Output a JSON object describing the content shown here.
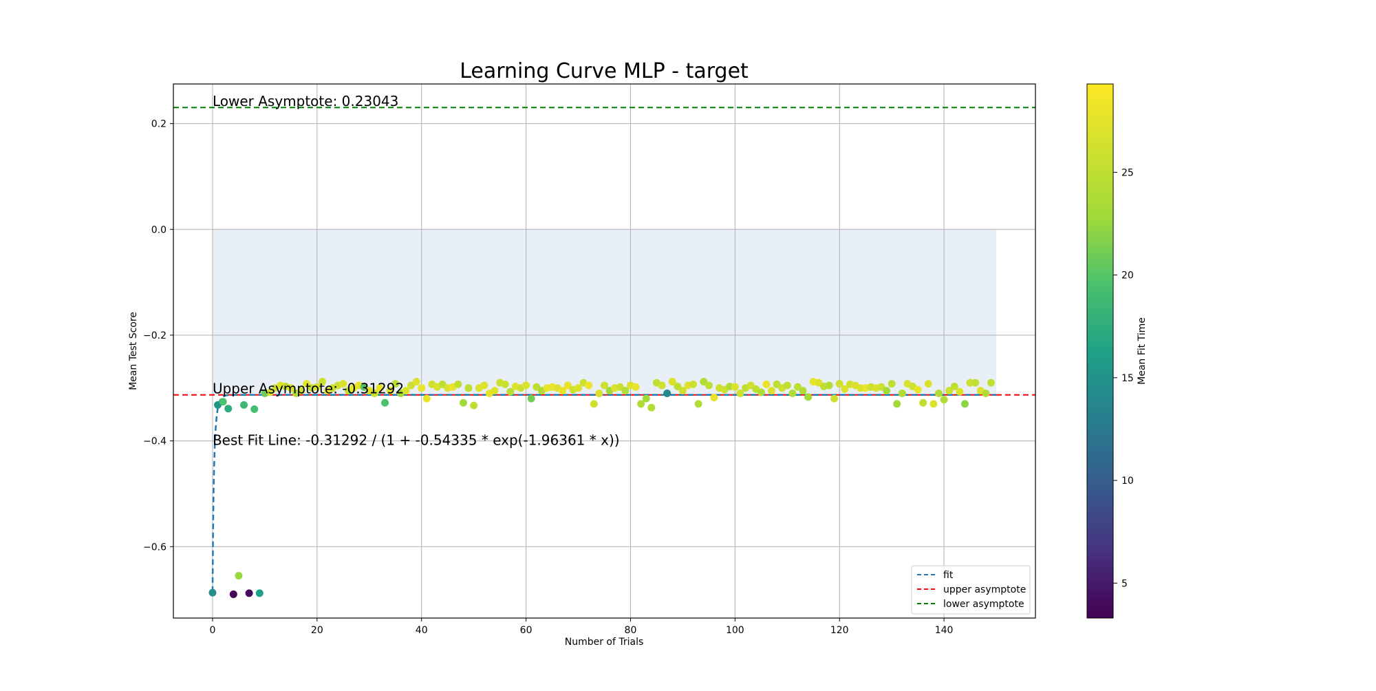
{
  "chart_data": {
    "type": "scatter",
    "title": "Learning Curve MLP - target",
    "xlabel": "Number of Trials",
    "ylabel": "Mean Test Score",
    "xlim": [
      -7.5,
      157.5
    ],
    "ylim": [
      -0.735,
      0.275
    ],
    "xticks": [
      0,
      20,
      40,
      60,
      80,
      100,
      120,
      140
    ],
    "yticks": [
      -0.6,
      -0.4,
      -0.2,
      0.0,
      0.2
    ],
    "xtick_labels": [
      "0",
      "20",
      "40",
      "60",
      "80",
      "100",
      "120",
      "140"
    ],
    "ytick_labels": [
      "−0.6",
      "−0.4",
      "−0.2",
      "0.0",
      "0.2"
    ],
    "grid": true,
    "legend_placement": "lower-right",
    "colorbar": {
      "label": "Mean Fit Time",
      "colormap": "viridis",
      "range": [
        3.3,
        29.3
      ],
      "ticks": [
        5,
        10,
        15,
        20,
        25
      ],
      "tick_labels": [
        "5",
        "10",
        "15",
        "20",
        "25"
      ]
    },
    "band": {
      "x": [
        0,
        150
      ],
      "y": [
        -0.31292,
        0.0
      ],
      "color": "#e8eff7"
    },
    "fit": {
      "name": "fit",
      "formula_params": {
        "a": -0.31292,
        "b": -0.54335,
        "c": -1.96361
      },
      "color": "#1f77b4",
      "x_range": [
        0,
        150
      ]
    },
    "upper_asymptote": {
      "name": "upper asymptote",
      "y": -0.31292,
      "color": "#ff0000"
    },
    "lower_asymptote": {
      "name": "lower asymptote",
      "y": 0.23043,
      "color": "#008000"
    },
    "annotations": [
      {
        "text": "Lower Asymptote: 0.23043",
        "x": 0,
        "y": 0.23043
      },
      {
        "text": "Upper Asymptote: -0.31292",
        "x": 0,
        "y": -0.31292
      },
      {
        "text": "Best Fit Line: -0.31292 / (1 + -0.54335 * exp(-1.96361 * x))",
        "x": 0,
        "y": -0.41
      }
    ],
    "legend": [
      "fit",
      "upper asymptote",
      "lower asymptote"
    ],
    "points": [
      [
        0,
        -0.687,
        14.5
      ],
      [
        1,
        -0.332,
        15.2
      ],
      [
        2,
        -0.326,
        19.5
      ],
      [
        3,
        -0.339,
        17.3
      ],
      [
        4,
        -0.69,
        3.5
      ],
      [
        5,
        -0.655,
        22.5
      ],
      [
        6,
        -0.332,
        18.5
      ],
      [
        7,
        -0.688,
        3.8
      ],
      [
        8,
        -0.34,
        19.2
      ],
      [
        9,
        -0.688,
        16.3
      ],
      [
        10,
        -0.31,
        21
      ],
      [
        11,
        -0.308,
        26.5
      ],
      [
        12,
        -0.3,
        26
      ],
      [
        13,
        -0.295,
        27
      ],
      [
        14,
        -0.297,
        25
      ],
      [
        15,
        -0.3,
        27
      ],
      [
        16,
        -0.31,
        24
      ],
      [
        17,
        -0.305,
        26
      ],
      [
        18,
        -0.292,
        27.5
      ],
      [
        19,
        -0.3,
        25
      ],
      [
        20,
        -0.298,
        27
      ],
      [
        21,
        -0.288,
        26
      ],
      [
        22,
        -0.305,
        27.5
      ],
      [
        23,
        -0.3,
        26
      ],
      [
        24,
        -0.295,
        26
      ],
      [
        25,
        -0.292,
        27
      ],
      [
        26,
        -0.305,
        25
      ],
      [
        27,
        -0.3,
        28
      ],
      [
        28,
        -0.295,
        27.5
      ],
      [
        29,
        -0.298,
        20
      ],
      [
        30,
        -0.305,
        27
      ],
      [
        31,
        -0.31,
        26
      ],
      [
        32,
        -0.3,
        28
      ],
      [
        33,
        -0.328,
        19.5
      ],
      [
        34,
        -0.305,
        27
      ],
      [
        35,
        -0.292,
        25
      ],
      [
        36,
        -0.31,
        23
      ],
      [
        37,
        -0.305,
        27
      ],
      [
        38,
        -0.295,
        26
      ],
      [
        39,
        -0.288,
        27
      ],
      [
        40,
        -0.3,
        28
      ],
      [
        41,
        -0.32,
        28
      ],
      [
        42,
        -0.293,
        26
      ],
      [
        43,
        -0.298,
        27
      ],
      [
        44,
        -0.293,
        25
      ],
      [
        45,
        -0.3,
        27
      ],
      [
        46,
        -0.298,
        28
      ],
      [
        47,
        -0.293,
        25
      ],
      [
        48,
        -0.328,
        23
      ],
      [
        49,
        -0.3,
        25
      ],
      [
        50,
        -0.333,
        25
      ],
      [
        51,
        -0.3,
        27
      ],
      [
        52,
        -0.295,
        27
      ],
      [
        53,
        -0.31,
        28
      ],
      [
        54,
        -0.305,
        27
      ],
      [
        55,
        -0.29,
        26
      ],
      [
        56,
        -0.293,
        26
      ],
      [
        57,
        -0.307,
        25
      ],
      [
        58,
        -0.297,
        27
      ],
      [
        59,
        -0.3,
        26
      ],
      [
        60,
        -0.295,
        27
      ],
      [
        61,
        -0.32,
        21
      ],
      [
        62,
        -0.298,
        25
      ],
      [
        63,
        -0.305,
        24
      ],
      [
        64,
        -0.3,
        28
      ],
      [
        65,
        -0.298,
        28
      ],
      [
        66,
        -0.3,
        27
      ],
      [
        67,
        -0.305,
        28
      ],
      [
        68,
        -0.295,
        28
      ],
      [
        69,
        -0.303,
        26
      ],
      [
        70,
        -0.3,
        27
      ],
      [
        71,
        -0.29,
        26
      ],
      [
        72,
        -0.295,
        28
      ],
      [
        73,
        -0.33,
        26
      ],
      [
        74,
        -0.31,
        27
      ],
      [
        75,
        -0.295,
        26
      ],
      [
        76,
        -0.305,
        23
      ],
      [
        77,
        -0.3,
        27
      ],
      [
        78,
        -0.298,
        26
      ],
      [
        79,
        -0.305,
        24
      ],
      [
        80,
        -0.295,
        27
      ],
      [
        81,
        -0.298,
        28
      ],
      [
        82,
        -0.33,
        24
      ],
      [
        83,
        -0.32,
        23
      ],
      [
        84,
        -0.337,
        24
      ],
      [
        85,
        -0.29,
        25
      ],
      [
        86,
        -0.295,
        26
      ],
      [
        87,
        -0.31,
        14
      ],
      [
        88,
        -0.288,
        27
      ],
      [
        89,
        -0.297,
        25
      ],
      [
        90,
        -0.305,
        26
      ],
      [
        91,
        -0.295,
        27
      ],
      [
        92,
        -0.293,
        26
      ],
      [
        93,
        -0.33,
        24
      ],
      [
        94,
        -0.288,
        24
      ],
      [
        95,
        -0.295,
        25
      ],
      [
        96,
        -0.318,
        28
      ],
      [
        97,
        -0.3,
        26
      ],
      [
        98,
        -0.303,
        26
      ],
      [
        99,
        -0.297,
        24
      ],
      [
        100,
        -0.298,
        27
      ],
      [
        101,
        -0.31,
        26
      ],
      [
        102,
        -0.3,
        25
      ],
      [
        103,
        -0.295,
        26
      ],
      [
        104,
        -0.302,
        25
      ],
      [
        105,
        -0.308,
        24
      ],
      [
        106,
        -0.293,
        28
      ],
      [
        107,
        -0.305,
        27
      ],
      [
        108,
        -0.293,
        25
      ],
      [
        109,
        -0.3,
        26
      ],
      [
        110,
        -0.295,
        25
      ],
      [
        111,
        -0.31,
        24
      ],
      [
        112,
        -0.298,
        25
      ],
      [
        113,
        -0.305,
        24
      ],
      [
        114,
        -0.317,
        23
      ],
      [
        115,
        -0.288,
        28
      ],
      [
        116,
        -0.29,
        27
      ],
      [
        117,
        -0.297,
        25
      ],
      [
        118,
        -0.295,
        24
      ],
      [
        119,
        -0.32,
        26
      ],
      [
        120,
        -0.292,
        26
      ],
      [
        121,
        -0.302,
        27
      ],
      [
        122,
        -0.293,
        26
      ],
      [
        123,
        -0.295,
        27
      ],
      [
        124,
        -0.3,
        27
      ],
      [
        125,
        -0.3,
        28
      ],
      [
        126,
        -0.298,
        26
      ],
      [
        127,
        -0.3,
        27
      ],
      [
        128,
        -0.298,
        26
      ],
      [
        129,
        -0.305,
        23
      ],
      [
        130,
        -0.292,
        25
      ],
      [
        131,
        -0.33,
        23
      ],
      [
        132,
        -0.31,
        24
      ],
      [
        133,
        -0.292,
        27
      ],
      [
        134,
        -0.297,
        26
      ],
      [
        135,
        -0.303,
        28
      ],
      [
        136,
        -0.328,
        25
      ],
      [
        137,
        -0.292,
        27
      ],
      [
        138,
        -0.33,
        27
      ],
      [
        139,
        -0.31,
        24
      ],
      [
        140,
        -0.322,
        24
      ],
      [
        141,
        -0.305,
        26
      ],
      [
        142,
        -0.297,
        25
      ],
      [
        143,
        -0.307,
        27
      ],
      [
        144,
        -0.33,
        22
      ],
      [
        145,
        -0.29,
        26
      ],
      [
        146,
        -0.29,
        25
      ],
      [
        147,
        -0.305,
        27
      ],
      [
        148,
        -0.31,
        24
      ],
      [
        149,
        -0.29,
        25
      ]
    ]
  }
}
